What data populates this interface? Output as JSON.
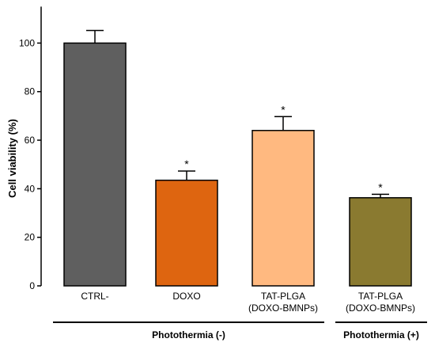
{
  "chart_data": {
    "type": "bar",
    "ylabel": "Cell viability (%)",
    "ylim": [
      0,
      115
    ],
    "yticks": [
      0,
      20,
      40,
      60,
      80,
      100
    ],
    "categories": [
      [
        "CTRL-"
      ],
      [
        "DOXO"
      ],
      [
        "TAT-PLGA",
        "(DOXO-BMNPs)"
      ],
      [
        "TAT-PLGA",
        "(DOXO-BMNPs)"
      ]
    ],
    "values": [
      100,
      43.5,
      64,
      36.3
    ],
    "errors": [
      5.2,
      3.8,
      5.7,
      1.4
    ],
    "significance": [
      "",
      "*",
      "*",
      "*"
    ],
    "colors": [
      "#5f5f5f",
      "#de6510",
      "#ffb980",
      "#8a7a30"
    ],
    "groups": [
      {
        "label": "Photothermia (-)",
        "categories": [
          0,
          1,
          2
        ]
      },
      {
        "label": "Photothermia (+)",
        "categories": [
          3
        ]
      }
    ],
    "grid": false,
    "legend": "none"
  }
}
